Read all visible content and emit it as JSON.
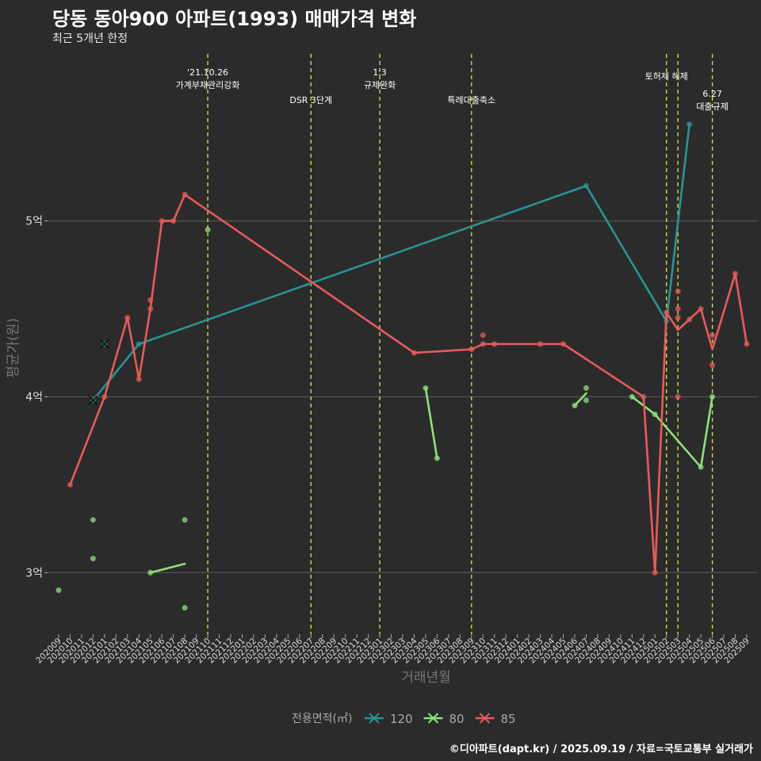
{
  "title": "당동 동아900 아파트(1993) 매매가격 변화",
  "subtitle": "최근 5개년 한정",
  "caption": "©디아파트(dapt.kr) / 2025.09.19 / 자료=국토교통부 실거래가",
  "colors": {
    "background": "#2b2b2b",
    "grid": "#555555",
    "event_line": "#e3e34a",
    "s120": "#2a9393",
    "s80": "#90e07a",
    "s85": "#e85a5a"
  },
  "chart_data": {
    "type": "line",
    "xlabel": "거래년월",
    "ylabel": "평균가(원)",
    "ylim": [
      2.65,
      5.95
    ],
    "yticks": [
      {
        "value": 3,
        "label": "3억"
      },
      {
        "value": 4,
        "label": "4억"
      },
      {
        "value": 5,
        "label": "5억"
      }
    ],
    "months": [
      "202009",
      "202010",
      "202011",
      "202012",
      "202101",
      "202102",
      "202103",
      "202104",
      "202105",
      "202106",
      "202107",
      "202108",
      "202109",
      "202110",
      "202111",
      "202112",
      "202201",
      "202202",
      "202203",
      "202204",
      "202205",
      "202206",
      "202207",
      "202208",
      "202209",
      "202210",
      "202211",
      "202212",
      "202301",
      "202302",
      "202303",
      "202304",
      "202305",
      "202306",
      "202307",
      "202308",
      "202309",
      "202310",
      "202311",
      "202312",
      "202401",
      "202402",
      "202403",
      "202404",
      "202405",
      "202406",
      "202407",
      "202408",
      "202409",
      "202410",
      "202411",
      "202412",
      "202501",
      "202502",
      "202503",
      "202504",
      "202505",
      "202506",
      "202507",
      "202508",
      "202509"
    ],
    "events": [
      {
        "month": "202110",
        "lines": [
          "'21.10.26",
          "가계부채관리강화"
        ],
        "level": 0
      },
      {
        "month": "202207",
        "lines": [
          "DSR 3단계"
        ],
        "level": 2
      },
      {
        "month": "202301",
        "lines": [
          "1.3",
          "규제완화"
        ],
        "level": 0
      },
      {
        "month": "202309",
        "lines": [
          "특례대출축소"
        ],
        "level": 2
      },
      {
        "month": "202502",
        "lines": [
          "토허제 해제"
        ],
        "level": 1
      },
      {
        "month": "202503",
        "lines": [],
        "level": 0
      },
      {
        "month": "202506",
        "lines": [
          "6.27",
          "대출규제"
        ],
        "level": 3
      }
    ],
    "legend_title": "전용면적(㎡)",
    "series": [
      {
        "name": "120",
        "color_key": "s120",
        "line": [
          [
            "202012",
            3.98
          ],
          [
            "202104",
            4.3
          ],
          [
            "202407",
            5.2
          ],
          [
            "202502",
            4.43
          ],
          [
            "202504",
            5.55
          ]
        ],
        "points": [
          [
            "202012",
            3.98
          ],
          [
            "202101",
            4.3
          ],
          [
            "202104",
            4.3
          ],
          [
            "202407",
            5.2
          ],
          [
            "202502",
            4.43
          ],
          [
            "202504",
            5.55
          ]
        ],
        "crosses": [
          [
            "202012",
            3.98
          ],
          [
            "202101",
            4.3
          ]
        ]
      },
      {
        "name": "80",
        "color_key": "s80",
        "line": [],
        "segments": [
          [
            [
              "202105",
              3.0
            ],
            [
              "202108",
              3.05
            ]
          ],
          [
            [
              "202305",
              4.05
            ],
            [
              "202306",
              3.65
            ]
          ],
          [
            [
              "202406",
              3.95
            ],
            [
              "202407",
              4.02
            ]
          ],
          [
            [
              "202411",
              4.0
            ],
            [
              "202501",
              3.9
            ],
            [
              "202505",
              3.6
            ],
            [
              "202506",
              4.0
            ]
          ]
        ],
        "points": [
          [
            "202009",
            2.9
          ],
          [
            "202012",
            3.3
          ],
          [
            "202012",
            3.08
          ],
          [
            "202105",
            3.0
          ],
          [
            "202108",
            3.3
          ],
          [
            "202108",
            2.8
          ],
          [
            "202110",
            4.95
          ],
          [
            "202305",
            4.05
          ],
          [
            "202306",
            3.65
          ],
          [
            "202406",
            3.95
          ],
          [
            "202407",
            4.05
          ],
          [
            "202407",
            3.98
          ],
          [
            "202411",
            4.0
          ],
          [
            "202501",
            3.9
          ],
          [
            "202505",
            3.6
          ],
          [
            "202506",
            4.0
          ]
        ],
        "crosses": []
      },
      {
        "name": "85",
        "color_key": "s85",
        "line": [
          [
            "202010",
            3.5
          ],
          [
            "202101",
            4.0
          ],
          [
            "202103",
            4.45
          ],
          [
            "202104",
            4.1
          ],
          [
            "202105",
            4.5
          ],
          [
            "202106",
            5.0
          ],
          [
            "202107",
            5.0
          ],
          [
            "202108",
            5.15
          ],
          [
            "202304",
            4.25
          ],
          [
            "202309",
            4.27
          ],
          [
            "202310",
            4.3
          ],
          [
            "202311",
            4.3
          ],
          [
            "202403",
            4.3
          ],
          [
            "202405",
            4.3
          ],
          [
            "202412",
            4.0
          ],
          [
            "202501",
            3.0
          ],
          [
            "202502",
            4.48
          ],
          [
            "202503",
            4.38
          ],
          [
            "202504",
            4.44
          ],
          [
            "202505",
            4.5
          ],
          [
            "202506",
            4.27
          ],
          [
            "202508",
            4.7
          ],
          [
            "202509",
            4.3
          ]
        ],
        "points": [
          [
            "202010",
            3.5
          ],
          [
            "202101",
            4.0
          ],
          [
            "202103",
            4.45
          ],
          [
            "202104",
            4.1
          ],
          [
            "202105",
            4.5
          ],
          [
            "202105",
            4.55
          ],
          [
            "202106",
            5.0
          ],
          [
            "202107",
            5.0
          ],
          [
            "202108",
            5.15
          ],
          [
            "202304",
            4.25
          ],
          [
            "202309",
            4.27
          ],
          [
            "202310",
            4.3
          ],
          [
            "202310",
            4.35
          ],
          [
            "202311",
            4.3
          ],
          [
            "202403",
            4.3
          ],
          [
            "202405",
            4.3
          ],
          [
            "202412",
            4.0
          ],
          [
            "202501",
            3.0
          ],
          [
            "202502",
            4.48
          ],
          [
            "202503",
            4.6
          ],
          [
            "202503",
            4.5
          ],
          [
            "202503",
            4.45
          ],
          [
            "202503",
            4.0
          ],
          [
            "202504",
            4.44
          ],
          [
            "202505",
            4.5
          ],
          [
            "202506",
            4.35
          ],
          [
            "202506",
            4.18
          ],
          [
            "202508",
            4.7
          ],
          [
            "202509",
            4.3
          ]
        ],
        "crosses": []
      }
    ]
  }
}
